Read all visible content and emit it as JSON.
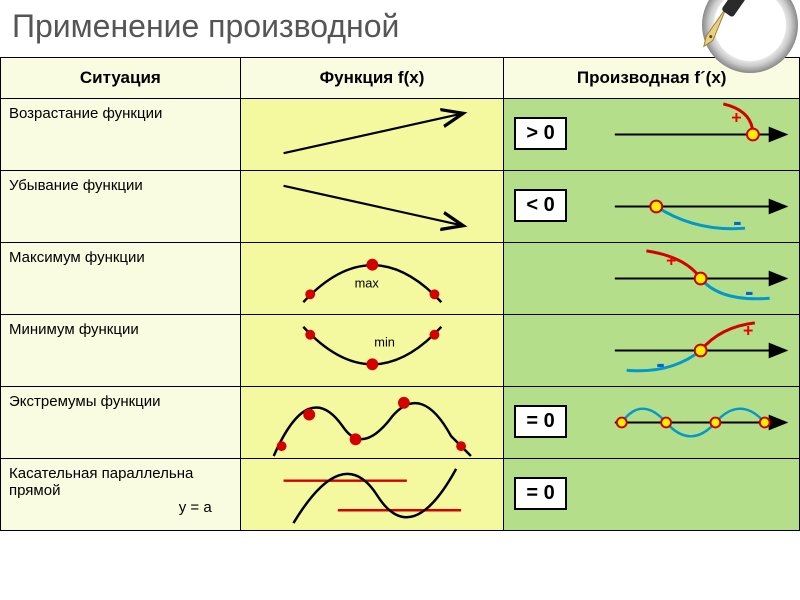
{
  "title": "Применение производной",
  "headers": {
    "col1": "Ситуация",
    "col2": "Функция f(x)",
    "col3": "Производная f´(x)"
  },
  "rows": [
    {
      "situation": "Возрастание функции",
      "badge": "> 0",
      "fxType": "increasing",
      "derivType": "positive"
    },
    {
      "situation": "Убывание функции",
      "badge": "< 0",
      "fxType": "decreasing",
      "derivType": "negative"
    },
    {
      "situation": "Максимум функции",
      "badge": "",
      "fxType": "max",
      "derivType": "posToNeg",
      "fxLabel": "max"
    },
    {
      "situation": "Минимум функции",
      "badge": "",
      "fxType": "min",
      "derivType": "negToPos",
      "fxLabel": "min"
    },
    {
      "situation": "Экстремумы функции",
      "badge": "= 0",
      "fxType": "extrema",
      "derivType": "wave"
    },
    {
      "situation": "Касательная параллельна прямой",
      "situation2": "y = a",
      "badge": "= 0",
      "fxType": "tangent",
      "derivType": "none"
    }
  ],
  "colors": {
    "headerBg": "#f9fce0",
    "fxBg": "#f4f89e",
    "derivBg": "#b5de8a",
    "curveBlack": "#000000",
    "redCurve": "#d40000",
    "blueCurve": "#0099cc",
    "dotFill": "#ffee00",
    "dotStroke": "#cc0000",
    "redDot": "#d40000",
    "tangentRed": "#d40000",
    "axisBlack": "#000000"
  },
  "symbols": {
    "plus": "+",
    "minus": "-"
  },
  "strokeWidths": {
    "curve": 2.5,
    "axis": 2,
    "arrow": 2.2,
    "tangent": 2.5
  }
}
